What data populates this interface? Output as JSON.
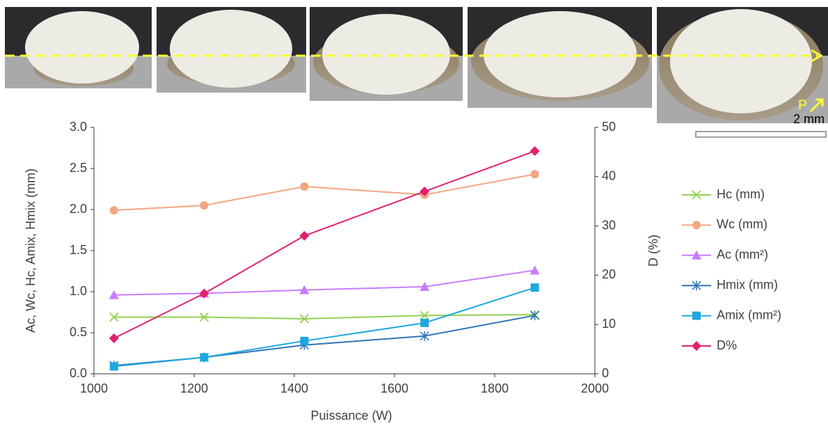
{
  "chart_data": {
    "type": "line",
    "x_label": "Puissance (W)",
    "y_label": "Ac, Wc, Hc, Amix, Hmix (mm)",
    "y2_label": "D (%)",
    "scale_label": "2 mm",
    "direction_label": "P",
    "x": [
      1040,
      1220,
      1420,
      1660,
      1880
    ],
    "xlim": [
      1000,
      2000
    ],
    "xticks": [
      1000,
      1200,
      1400,
      1600,
      1800,
      2000
    ],
    "ylim": [
      0,
      3
    ],
    "yticks": [
      {
        "value": 0,
        "label": "0.0"
      },
      {
        "value": 0.5,
        "label": "0.5"
      },
      {
        "value": 1,
        "label": "1.0"
      },
      {
        "value": 1.5,
        "label": "1.5"
      },
      {
        "value": 2,
        "label": "2.0"
      },
      {
        "value": 2.5,
        "label": "2.5"
      },
      {
        "value": 3,
        "label": "3.0"
      }
    ],
    "y2lim": [
      0,
      50
    ],
    "y2ticks": [
      0,
      10,
      20,
      30,
      40,
      50
    ],
    "grid": false,
    "legend": "right",
    "series": [
      {
        "name": "Hc (mm)",
        "color": "#92d050",
        "marker": "x",
        "values": [
          0.69,
          0.69,
          0.67,
          0.71,
          0.72
        ]
      },
      {
        "name": "Wc (mm)",
        "color": "#f4a582",
        "marker": "circle",
        "values": [
          1.99,
          2.05,
          2.28,
          2.18,
          2.43
        ]
      },
      {
        "name": "Ac (mm²)",
        "color": "#c77dff",
        "marker": "triangle",
        "values": [
          0.96,
          0.98,
          1.02,
          1.06,
          1.26
        ]
      },
      {
        "name": "Hmix (mm)",
        "color": "#2e75b6",
        "marker": "star",
        "values": [
          0.1,
          0.2,
          0.35,
          0.46,
          0.71
        ]
      },
      {
        "name": "Amix (mm²)",
        "color": "#1fa7e0",
        "marker": "square",
        "values": [
          0.09,
          0.2,
          0.4,
          0.62,
          1.05
        ]
      },
      {
        "name": "D%",
        "color": "#e0226e",
        "marker": "diamond",
        "axis": "y2",
        "values": [
          7.2,
          16.3,
          28,
          37,
          45.2
        ]
      }
    ]
  }
}
